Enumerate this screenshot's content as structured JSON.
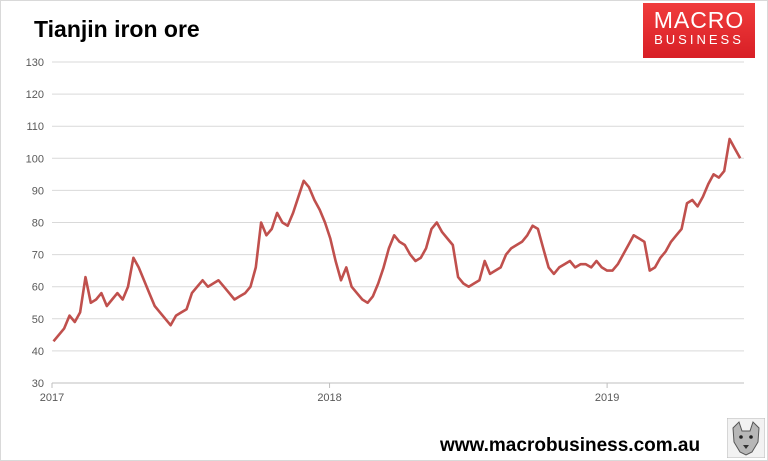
{
  "title": "Tianjin iron ore",
  "logo": {
    "line1": "MACRO",
    "line2": "BUSINESS"
  },
  "website": "www.macrobusiness.com.au",
  "colors": {
    "line": "#c0504d",
    "grid": "#d9d9d9",
    "logo_bg": "#e5262b"
  },
  "chart_data": {
    "type": "line",
    "title": "Tianjin iron ore",
    "xlabel": "",
    "ylabel": "",
    "ylim": [
      30,
      130
    ],
    "xlim": [
      "2017-01-01",
      "2019-06-30"
    ],
    "yticks": [
      "30",
      "40",
      "50",
      "60",
      "70",
      "80",
      "90",
      "100",
      "110",
      "120",
      "130"
    ],
    "xticks": [
      "2017",
      "2018",
      "2019"
    ],
    "grid": true,
    "legend": "none",
    "series": [
      {
        "x": [
          "2017-01-03",
          "2017-01-10",
          "2017-01-17",
          "2017-01-24",
          "2017-01-31",
          "2017-02-07",
          "2017-02-14",
          "2017-02-21",
          "2017-02-28",
          "2017-03-07",
          "2017-03-14",
          "2017-03-21",
          "2017-03-28",
          "2017-04-04",
          "2017-04-11",
          "2017-04-18",
          "2017-04-25",
          "2017-05-02",
          "2017-05-09",
          "2017-05-16",
          "2017-05-23",
          "2017-05-30",
          "2017-06-06",
          "2017-06-13",
          "2017-06-20",
          "2017-06-27",
          "2017-07-04",
          "2017-07-11",
          "2017-07-18",
          "2017-07-25",
          "2017-08-01",
          "2017-08-08",
          "2017-08-15",
          "2017-08-22",
          "2017-08-29",
          "2017-09-05",
          "2017-09-12",
          "2017-09-19",
          "2017-09-26",
          "2017-10-03",
          "2017-10-10",
          "2017-10-17",
          "2017-10-24",
          "2017-10-31",
          "2017-11-07",
          "2017-11-14",
          "2017-11-21",
          "2017-11-28",
          "2017-12-05",
          "2017-12-12",
          "2017-12-19",
          "2017-12-26",
          "2018-01-02",
          "2018-01-09",
          "2018-01-16",
          "2018-01-23",
          "2018-01-30",
          "2018-02-06",
          "2018-02-13",
          "2018-02-20",
          "2018-02-27",
          "2018-03-06",
          "2018-03-13",
          "2018-03-20",
          "2018-03-27",
          "2018-04-03",
          "2018-04-10",
          "2018-04-17",
          "2018-04-24",
          "2018-05-01",
          "2018-05-08",
          "2018-05-15",
          "2018-05-22",
          "2018-05-29",
          "2018-06-05",
          "2018-06-12",
          "2018-06-19",
          "2018-06-26",
          "2018-07-03",
          "2018-07-10",
          "2018-07-17",
          "2018-07-24",
          "2018-07-31",
          "2018-08-07",
          "2018-08-14",
          "2018-08-21",
          "2018-08-28",
          "2018-09-04",
          "2018-09-11",
          "2018-09-18",
          "2018-09-25",
          "2018-10-02",
          "2018-10-09",
          "2018-10-16",
          "2018-10-23",
          "2018-10-30",
          "2018-11-06",
          "2018-11-13",
          "2018-11-20",
          "2018-11-27",
          "2018-12-04",
          "2018-12-11",
          "2018-12-18",
          "2018-12-25",
          "2019-01-01",
          "2019-01-08",
          "2019-01-15",
          "2019-01-22",
          "2019-01-29",
          "2019-02-05",
          "2019-02-12",
          "2019-02-19",
          "2019-02-26",
          "2019-03-05",
          "2019-03-12",
          "2019-03-19",
          "2019-03-26",
          "2019-04-02",
          "2019-04-09",
          "2019-04-16",
          "2019-04-23",
          "2019-04-30",
          "2019-05-07",
          "2019-05-14",
          "2019-05-21",
          "2019-05-28",
          "2019-06-04",
          "2019-06-11",
          "2019-06-18",
          "2019-06-25"
        ],
        "values": [
          43,
          45,
          47,
          51,
          49,
          52,
          63,
          55,
          56,
          58,
          54,
          56,
          58,
          56,
          60,
          69,
          66,
          62,
          58,
          54,
          52,
          50,
          48,
          51,
          52,
          53,
          58,
          60,
          62,
          60,
          61,
          62,
          60,
          58,
          56,
          57,
          58,
          60,
          66,
          80,
          76,
          78,
          83,
          80,
          79,
          83,
          88,
          93,
          91,
          87,
          84,
          80,
          75,
          68,
          62,
          66,
          60,
          58,
          56,
          55,
          57,
          61,
          66,
          72,
          76,
          74,
          73,
          70,
          68,
          69,
          72,
          78,
          80,
          77,
          75,
          73,
          63,
          61,
          60,
          61,
          62,
          68,
          64,
          65,
          66,
          70,
          72,
          73,
          74,
          76,
          79,
          78,
          72,
          66,
          64,
          66,
          67,
          68,
          66,
          67,
          67,
          66,
          68,
          66,
          65,
          65,
          67,
          70,
          73,
          76,
          75,
          74,
          65,
          66,
          69,
          71,
          74,
          76,
          78,
          86,
          87,
          85,
          88,
          92,
          95,
          94,
          96,
          106,
          103,
          100
        ]
      }
    ]
  }
}
